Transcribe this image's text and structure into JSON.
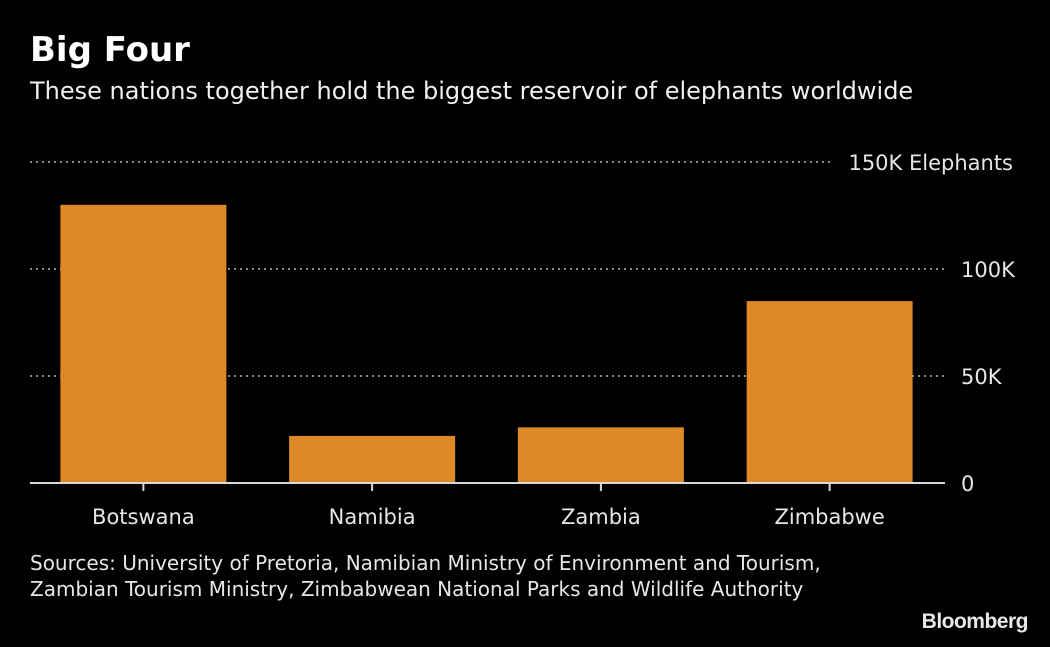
{
  "header": {
    "title": "Big Four",
    "subtitle": "These nations together hold the biggest reservoir of elephants worldwide"
  },
  "chart_data": {
    "type": "bar",
    "title": "Big Four",
    "subtitle": "These nations together hold the biggest reservoir of elephants worldwide",
    "categories": [
      "Botswana",
      "Namibia",
      "Zambia",
      "Zimbabwe"
    ],
    "values": [
      130000,
      22000,
      26000,
      85000
    ],
    "xlabel": "",
    "ylabel": "Elephants",
    "ylim": [
      0,
      150000
    ],
    "yticks": [
      0,
      50000,
      100000,
      150000
    ],
    "ytick_labels": [
      "0",
      "50K",
      "100K",
      "150K Elephants"
    ],
    "y_axis_position": "right",
    "grid": true,
    "grid_style": "dotted",
    "bar_color": "#dd8a26",
    "background": "#000000"
  },
  "footer": {
    "source": "Sources: University of Pretoria, Namibian Ministry of Environment and Tourism, Zambian Tourism Ministry, Zimbabwean National Parks and Wildlife Authority",
    "brand": "Bloomberg"
  }
}
